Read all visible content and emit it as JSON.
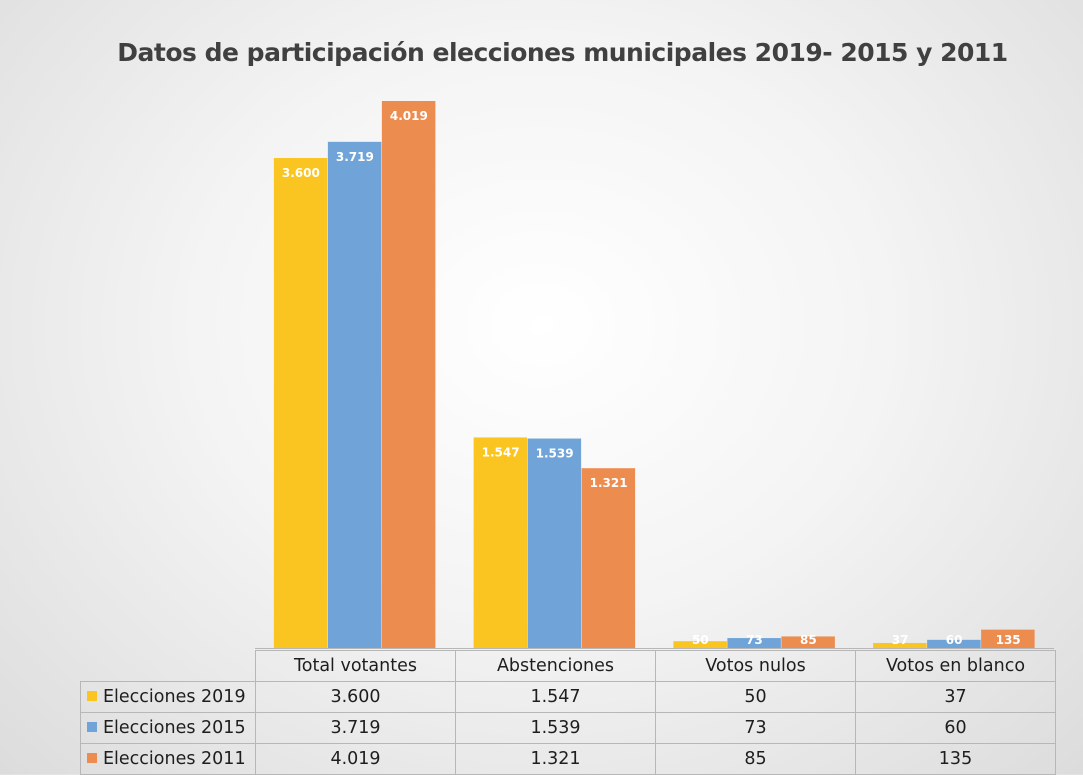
{
  "chart_data": {
    "type": "bar",
    "title": "Datos de participación elecciones municipales 2019- 2015 y 2011",
    "categories": [
      "Total votantes",
      "Abstenciones",
      "Votos nulos",
      "Votos en blanco"
    ],
    "series": [
      {
        "name": "Elecciones 2019",
        "color": "#fac520",
        "values": [
          3600,
          1547,
          50,
          37
        ],
        "labels": [
          "3.600",
          "1.547",
          "50",
          "37"
        ]
      },
      {
        "name": "Elecciones 2015",
        "color": "#70a4d8",
        "values": [
          3719,
          1539,
          73,
          60
        ],
        "labels": [
          "3.719",
          "1.539",
          "73",
          "60"
        ]
      },
      {
        "name": "Elecciones 2011",
        "color": "#ed8c4f",
        "values": [
          4019,
          1321,
          85,
          135
        ],
        "labels": [
          "4.019",
          "1.321",
          "85",
          "135"
        ]
      }
    ],
    "ylim": [
      0,
      4019
    ],
    "grid": false,
    "legend": "data-table",
    "xlabel": "",
    "ylabel": ""
  }
}
